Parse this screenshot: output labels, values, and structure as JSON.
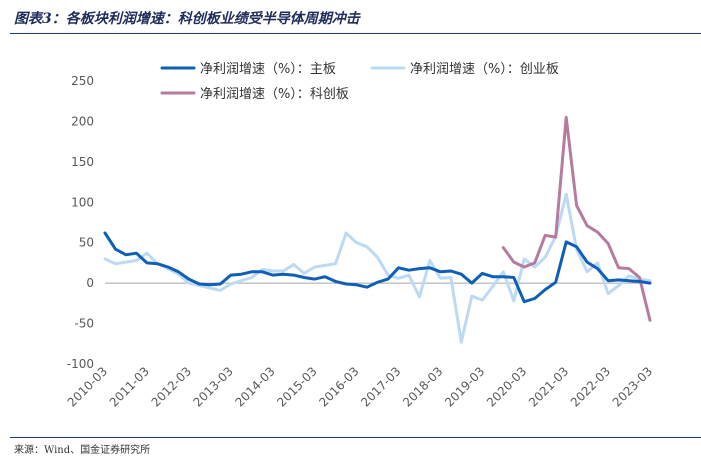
{
  "title": "图表3：各板块利润增速：科创板业绩受半导体周期冲击",
  "source": "来源：Wind、国金证券研究所",
  "chart_data": {
    "type": "line",
    "ylim": [
      -100,
      250
    ],
    "yticks": [
      -100,
      -50,
      0,
      50,
      100,
      150,
      200,
      250
    ],
    "xtick_labels": [
      "2010-03",
      "2011-03",
      "2012-03",
      "2013-03",
      "2014-03",
      "2015-03",
      "2016-03",
      "2017-03",
      "2018-03",
      "2019-03",
      "2020-03",
      "2021-03",
      "2022-03",
      "2023-03"
    ],
    "grid": false,
    "legend_position": "top",
    "series": [
      {
        "name": "净利润增速（%）：主板",
        "color": "#0e5fb5",
        "start_index": 0,
        "values": [
          62,
          42,
          35,
          37,
          25,
          24,
          20,
          14,
          5,
          -1,
          -2,
          -1,
          10,
          11,
          14,
          14,
          10,
          11,
          10,
          7,
          5,
          8,
          2,
          -1,
          -2,
          -5,
          1,
          5,
          19,
          16,
          18,
          19,
          14,
          15,
          11,
          0,
          12,
          8,
          8,
          7,
          -23,
          -19,
          -8,
          1,
          51,
          45,
          26,
          18,
          3,
          4,
          3,
          2,
          0
        ]
      },
      {
        "name": "净利润增速（%）：创业板",
        "color": "#bcdaf3",
        "start_index": 0,
        "values": [
          30,
          24,
          26,
          28,
          37,
          24,
          18,
          11,
          0,
          -3,
          -6,
          -9,
          -1,
          3,
          7,
          17,
          15,
          15,
          23,
          12,
          20,
          22,
          24,
          62,
          50,
          45,
          32,
          10,
          6,
          10,
          -17,
          28,
          6,
          7,
          -73,
          -16,
          -21,
          -4,
          14,
          -22,
          30,
          20,
          32,
          58,
          110,
          42,
          14,
          25,
          -13,
          -3,
          9,
          5,
          3
        ]
      },
      {
        "name": "净利润增速（%）：科创板",
        "color": "#b57c9f",
        "start_index": 38,
        "values": [
          44,
          26,
          20,
          25,
          59,
          57,
          205,
          96,
          71,
          63,
          49,
          19,
          18,
          7,
          -46
        ]
      }
    ]
  }
}
